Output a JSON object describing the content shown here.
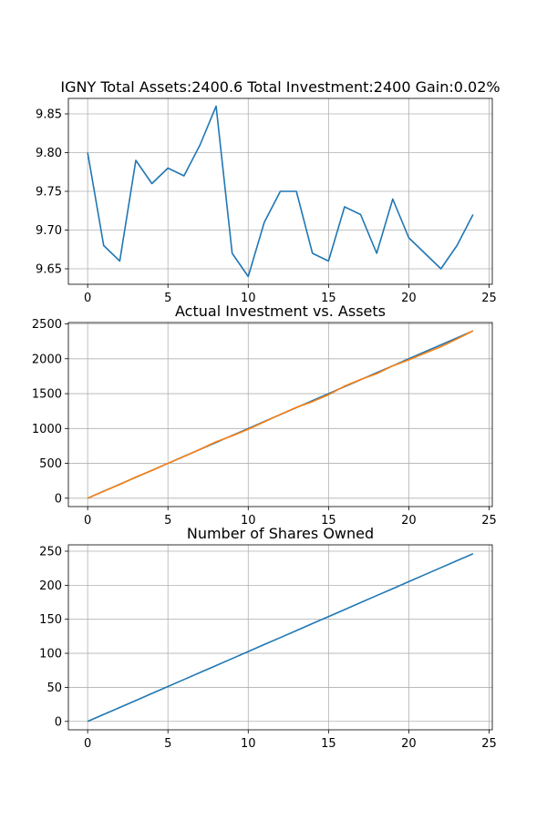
{
  "chart_data": [
    {
      "type": "line",
      "title": "IGNY Total Assets:2400.6  Total Investment:2400  Gain:0.02%",
      "xlabel": "",
      "ylabel": "",
      "xlim": [
        -1.2,
        25.2
      ],
      "ylim": [
        9.63,
        9.87
      ],
      "xticks": [
        0,
        5,
        10,
        15,
        20,
        25
      ],
      "yticks": [
        9.65,
        9.7,
        9.75,
        9.8,
        9.85
      ],
      "ytick_decimals": 2,
      "grid": true,
      "x": [
        0,
        1,
        2,
        3,
        4,
        5,
        6,
        7,
        8,
        9,
        10,
        11,
        12,
        13,
        14,
        15,
        16,
        17,
        18,
        19,
        20,
        21,
        22,
        23,
        24
      ],
      "series": [
        {
          "color": "#1f77b4",
          "values": [
            9.8,
            9.68,
            9.66,
            9.79,
            9.76,
            9.78,
            9.77,
            9.81,
            9.86,
            9.67,
            9.64,
            9.71,
            9.75,
            9.75,
            9.67,
            9.66,
            9.73,
            9.72,
            9.67,
            9.74,
            9.69,
            9.67,
            9.65,
            9.68,
            9.72
          ]
        }
      ]
    },
    {
      "type": "line",
      "title": "Actual Investment vs. Assets",
      "xlabel": "",
      "ylabel": "",
      "xlim": [
        -1.2,
        25.2
      ],
      "ylim": [
        -120,
        2520
      ],
      "xticks": [
        0,
        5,
        10,
        15,
        20,
        25
      ],
      "yticks": [
        0,
        500,
        1000,
        1500,
        2000,
        2500
      ],
      "ytick_decimals": 0,
      "grid": true,
      "x": [
        0,
        1,
        2,
        3,
        4,
        5,
        6,
        7,
        8,
        9,
        10,
        11,
        12,
        13,
        14,
        15,
        16,
        17,
        18,
        19,
        20,
        21,
        22,
        23,
        24
      ],
      "series": [
        {
          "color": "#1f77b4",
          "values": [
            0,
            100,
            200,
            300,
            400,
            500,
            600,
            700,
            800,
            900,
            1000,
            1100,
            1200,
            1300,
            1400,
            1500,
            1600,
            1700,
            1800,
            1900,
            2000,
            2100,
            2200,
            2300,
            2400
          ]
        },
        {
          "color": "#ff7f0e",
          "values": [
            0,
            98.6,
            197.3,
            302.6,
            397.8,
            499.7,
            598.1,
            702.2,
            809.2,
            894.3,
            988.8,
            1094.4,
            1202.5,
            1302.5,
            1385.4,
            1483.9,
            1608.1,
            1703.3,
            1785.9,
            1899.5,
            1984.5,
            2080.0,
            2173.8,
            2283.6,
            2400.6
          ]
        }
      ]
    },
    {
      "type": "line",
      "title": "Number of Shares Owned",
      "xlabel": "",
      "ylabel": "",
      "xlim": [
        -1.2,
        25.2
      ],
      "ylim": [
        -12.35,
        259.35
      ],
      "xticks": [
        0,
        5,
        10,
        15,
        20,
        25
      ],
      "yticks": [
        0,
        50,
        100,
        150,
        200,
        250
      ],
      "ytick_decimals": 0,
      "grid": true,
      "x": [
        0,
        1,
        2,
        3,
        4,
        5,
        6,
        7,
        8,
        9,
        10,
        11,
        12,
        13,
        14,
        15,
        16,
        17,
        18,
        19,
        20,
        21,
        22,
        23,
        24
      ],
      "series": [
        {
          "color": "#1f77b4",
          "values": [
            0,
            10.2,
            20.4,
            30.7,
            41.0,
            51.2,
            61.5,
            71.8,
            82.0,
            92.3,
            102.6,
            112.9,
            123.1,
            133.4,
            143.7,
            154.0,
            164.2,
            174.5,
            184.8,
            195.0,
            205.3,
            215.6,
            225.8,
            236.1,
            246.3
          ]
        }
      ]
    }
  ]
}
